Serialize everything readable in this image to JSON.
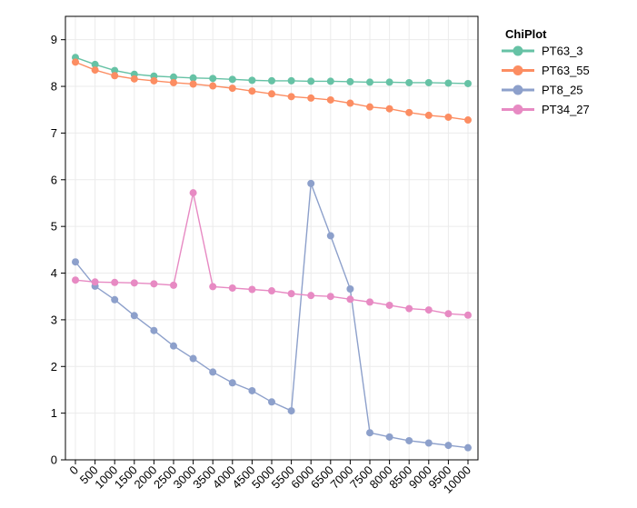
{
  "chart_data": {
    "type": "line",
    "title": "",
    "xlabel": "",
    "ylabel": "",
    "x": [
      0,
      500,
      1000,
      1500,
      2000,
      2500,
      3000,
      3500,
      4000,
      4500,
      5000,
      5500,
      6000,
      6500,
      7000,
      7500,
      8000,
      8500,
      9000,
      9500,
      10000
    ],
    "x_tick_labels": [
      "0",
      "500",
      "1000",
      "1500",
      "2000",
      "2500",
      "3000",
      "3500",
      "4000",
      "4500",
      "5000",
      "5500",
      "6000",
      "6500",
      "7000",
      "7500",
      "8000",
      "8500",
      "9000",
      "9500",
      "10000"
    ],
    "ylim": [
      0,
      9.5
    ],
    "y_ticks": [
      0,
      1,
      2,
      3,
      4,
      5,
      6,
      7,
      8,
      9
    ],
    "grid": true,
    "legend": {
      "title": "ChiPlot",
      "position": "top-right-outside"
    },
    "series": [
      {
        "name": "PT63_3",
        "color": "#66c2a5",
        "values": [
          8.62,
          8.47,
          8.34,
          8.26,
          8.22,
          8.2,
          8.18,
          8.17,
          8.15,
          8.13,
          8.12,
          8.12,
          8.11,
          8.11,
          8.1,
          8.09,
          8.09,
          8.08,
          8.08,
          8.07,
          8.06
        ]
      },
      {
        "name": "PT63_55",
        "color": "#fc8d62",
        "values": [
          8.52,
          8.35,
          8.23,
          8.16,
          8.12,
          8.08,
          8.05,
          8.01,
          7.96,
          7.9,
          7.84,
          7.78,
          7.75,
          7.71,
          7.64,
          7.56,
          7.52,
          7.44,
          7.38,
          7.34,
          7.28
        ]
      },
      {
        "name": "PT8_25",
        "color": "#8da0cb",
        "values": [
          4.24,
          3.72,
          3.43,
          3.09,
          2.77,
          2.44,
          2.17,
          1.88,
          1.65,
          1.48,
          1.24,
          1.05,
          5.92,
          4.8,
          3.66,
          0.58,
          0.49,
          0.41,
          0.36,
          0.31,
          0.26
        ]
      },
      {
        "name": "PT34_27",
        "color": "#e78ac3",
        "values": [
          3.85,
          3.81,
          3.8,
          3.79,
          3.77,
          3.74,
          5.72,
          3.71,
          3.68,
          3.65,
          3.62,
          3.56,
          3.52,
          3.5,
          3.44,
          3.38,
          3.31,
          3.24,
          3.21,
          3.13,
          3.1
        ]
      }
    ]
  }
}
